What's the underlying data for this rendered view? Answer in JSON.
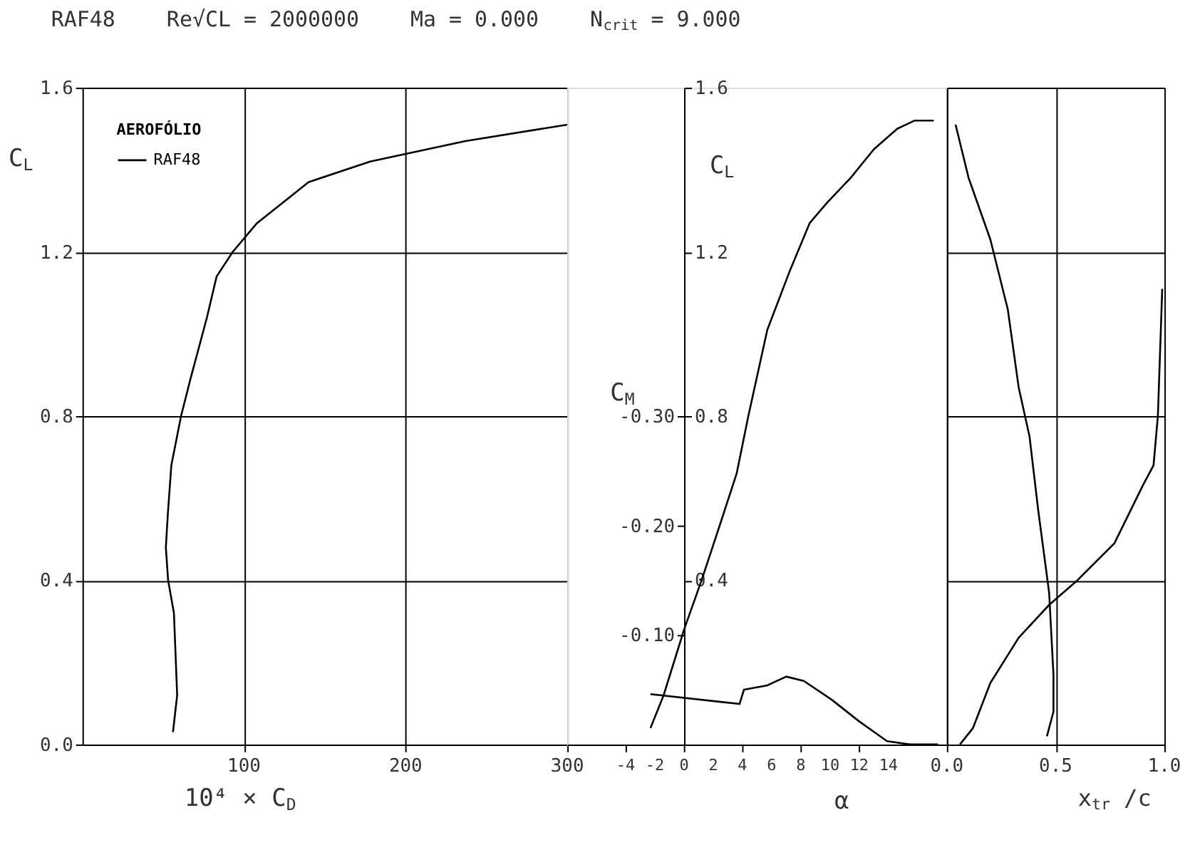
{
  "chart_data": [
    {
      "type": "line",
      "title": "RAF48    Re√CL = 2000000    Ma = 0.000    N$_{crit}$ = 9.000",
      "xlabel": "10⁴ × C$_{D}$",
      "ylabel": "C$_{L}$",
      "legend_title": "AEROFÓLIO",
      "legend": "top left",
      "grid": true,
      "xlim": [
        0,
        300
      ],
      "xticks": [
        100,
        200,
        300
      ],
      "ylim": [
        0,
        1.6
      ],
      "yticks": [
        {
          "value": 0,
          "label": "0.0"
        },
        {
          "value": 0.4,
          "label": "0.4"
        },
        {
          "value": 0.8,
          "label": "0.8"
        },
        {
          "value": 1.2,
          "label": "1.2"
        },
        {
          "value": 1.6,
          "label": "1.6"
        }
      ],
      "series": [
        {
          "name": "RAF48",
          "color": "#000000",
          "x": [
            56,
            58.6,
            56.6,
            53,
            51.6,
            52.8,
            55,
            61,
            66.8,
            77,
            83,
            93,
            108,
            140,
            178,
            237,
            300
          ],
          "values": [
            0.03,
            0.12,
            0.32,
            0.4,
            0.48,
            0.56,
            0.68,
            0.8,
            0.89,
            1.04,
            1.14,
            1.2,
            1.27,
            1.37,
            1.42,
            1.47,
            1.51
          ]
        }
      ]
    },
    {
      "type": "line",
      "xlabel": "α",
      "ylabel": "C$_{L}$",
      "y2label": "C$_{M}$",
      "grid": false,
      "xlim": [
        -8,
        18
      ],
      "xticks": [
        -4,
        -2,
        0,
        2,
        4,
        6,
        8,
        10,
        12,
        14
      ],
      "ylim": [
        0,
        1.6
      ],
      "yticks": [
        0.4,
        0.8,
        1.2,
        1.6
      ],
      "y2lim": [
        0,
        -0.6
      ],
      "y2ticks": [
        {
          "value": -0.1,
          "label": "-0.10"
        },
        {
          "value": -0.2,
          "label": "-0.20"
        },
        {
          "value": -0.3,
          "label": "-0.30"
        }
      ],
      "series": [
        {
          "color": "#000000",
          "x": [
            -2.3,
            -1.4,
            0,
            1.2,
            2.5,
            3.6,
            4.4,
            5.7,
            7.2,
            8.6,
            9.8,
            11.4,
            13,
            14.6,
            15.8,
            17.1
          ],
          "values": [
            0.04,
            0.12,
            0.28,
            0.4,
            0.54,
            0.66,
            0.8,
            1.01,
            1.15,
            1.27,
            1.32,
            1.38,
            1.45,
            1.5,
            1.52,
            1.52
          ]
        },
        {
          "color": "#000000",
          "axis": "y2",
          "x": [
            -2.3,
            3.8,
            4.1,
            5.7,
            7.0,
            8.2,
            10.1,
            12,
            13.9,
            15.5,
            17.4
          ],
          "values": [
            -0.046,
            -0.037,
            -0.05,
            -0.054,
            -0.062,
            -0.058,
            -0.041,
            -0.021,
            -0.003,
            0,
            0
          ]
        }
      ]
    },
    {
      "type": "line",
      "xlabel": "x$_{tr}$ /c",
      "grid": true,
      "tick_labels": "x",
      "xlim": [
        0,
        1
      ],
      "xticks": [
        {
          "value": 0,
          "label": "0.0"
        },
        {
          "value": 0.5,
          "label": "0.5"
        },
        {
          "value": 1,
          "label": "1.0"
        }
      ],
      "ylim": [
        0,
        1.6
      ],
      "yticks": [
        0,
        0.4,
        0.8,
        1.2,
        1.6
      ],
      "series": [
        {
          "color": "#000000",
          "x": [
            0.04,
            0.1,
            0.2,
            0.28,
            0.33,
            0.38,
            0.42,
            0.47,
            0.49,
            0.49,
            0.46
          ],
          "values": [
            1.51,
            1.38,
            1.23,
            1.06,
            0.87,
            0.75,
            0.57,
            0.37,
            0.17,
            0.08,
            0.02
          ]
        },
        {
          "color": "#000000",
          "x": [
            0.06,
            0.12,
            0.2,
            0.33,
            0.47,
            0.6,
            0.77,
            0.9,
            0.95,
            0.97,
            0.99
          ],
          "values": [
            0.0,
            0.04,
            0.15,
            0.26,
            0.34,
            0.4,
            0.49,
            0.63,
            0.68,
            0.8,
            1.11
          ]
        }
      ]
    }
  ]
}
